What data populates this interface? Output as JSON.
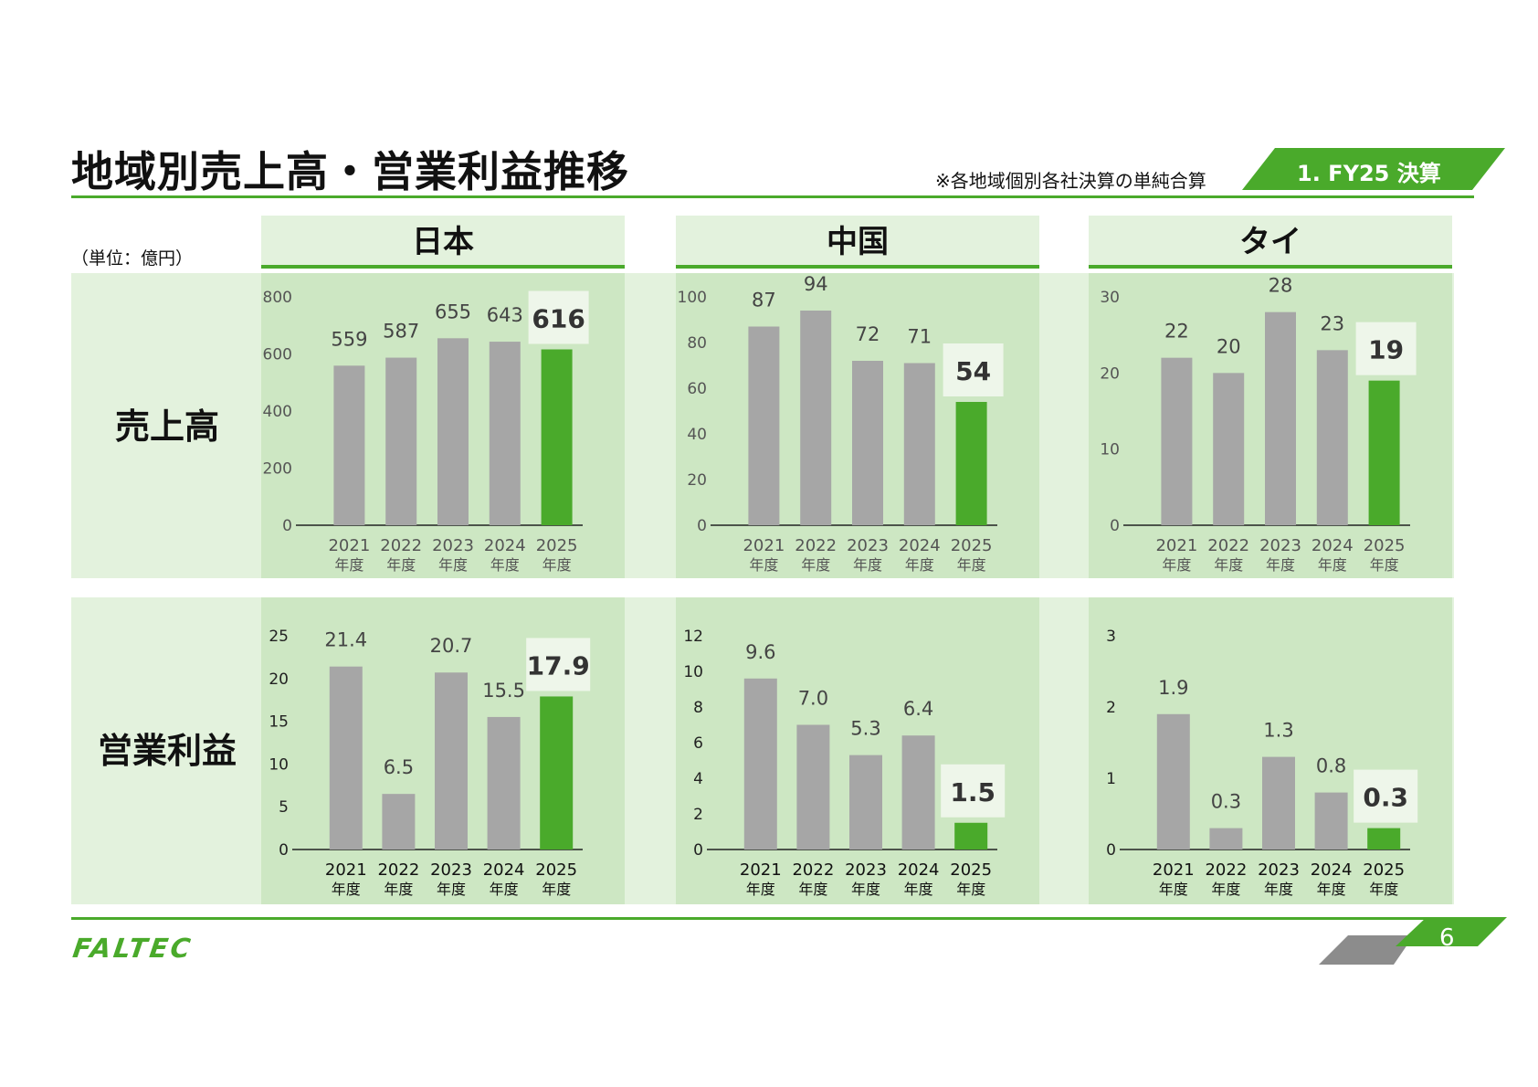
{
  "title": "地域別売上高・営業利益推移",
  "note": "※各地域個別各社決算の単純合算",
  "section": "1. FY25 決算",
  "unit": "（単位：億円）",
  "regions": [
    "日本",
    "中国",
    "タイ"
  ],
  "rows": [
    "売上高",
    "営業利益"
  ],
  "page": "6",
  "logo": "FALTEC",
  "colors": {
    "accent": "#4aaa2b",
    "bar": "#a6a6a6",
    "panel": "#cde7c3",
    "band": "#e3f2dd"
  },
  "chart_data": [
    {
      "type": "bar",
      "region": "日本",
      "metric": "売上高",
      "categories": [
        "2021\n年度",
        "2022\n年度",
        "2023\n年度",
        "2024\n年度",
        "2025\n年度"
      ],
      "values": [
        559,
        587,
        655,
        643,
        616
      ],
      "ylim": [
        0,
        800
      ],
      "yticks": [
        0,
        200,
        400,
        600,
        800
      ],
      "labels": [
        "559",
        "587",
        "655",
        "643",
        "616"
      ],
      "highlight_last": true
    },
    {
      "type": "bar",
      "region": "中国",
      "metric": "売上高",
      "categories": [
        "2021\n年度",
        "2022\n年度",
        "2023\n年度",
        "2024\n年度",
        "2025\n年度"
      ],
      "values": [
        87,
        94,
        72,
        71,
        54
      ],
      "ylim": [
        0,
        100
      ],
      "yticks": [
        0,
        20,
        40,
        60,
        80,
        100
      ],
      "labels": [
        "87",
        "94",
        "72",
        "71",
        "54"
      ],
      "highlight_last": true
    },
    {
      "type": "bar",
      "region": "タイ",
      "metric": "売上高",
      "categories": [
        "2021\n年度",
        "2022\n年度",
        "2023\n年度",
        "2024\n年度",
        "2025\n年度"
      ],
      "values": [
        22,
        20,
        28,
        23,
        19
      ],
      "ylim": [
        0,
        30
      ],
      "yticks": [
        0,
        10,
        20,
        30
      ],
      "labels": [
        "22",
        "20",
        "28",
        "23",
        "19"
      ],
      "highlight_last": true
    },
    {
      "type": "bar",
      "region": "日本",
      "metric": "営業利益",
      "categories": [
        "2021\n年度",
        "2022\n年度",
        "2023\n年度",
        "2024\n年度",
        "2025\n年度"
      ],
      "values": [
        21.4,
        6.5,
        20.7,
        15.5,
        17.9
      ],
      "ylim": [
        0,
        25
      ],
      "yticks": [
        0,
        5,
        10,
        15,
        20,
        25
      ],
      "labels": [
        "21.4",
        "6.5",
        "20.7",
        "15.5",
        "17.9"
      ],
      "highlight_last": true
    },
    {
      "type": "bar",
      "region": "中国",
      "metric": "営業利益",
      "categories": [
        "2021\n年度",
        "2022\n年度",
        "2023\n年度",
        "2024\n年度",
        "2025\n年度"
      ],
      "values": [
        9.6,
        7.0,
        5.3,
        6.4,
        1.5
      ],
      "ylim": [
        0,
        12
      ],
      "yticks": [
        0,
        2,
        4,
        6,
        8,
        10,
        12
      ],
      "labels": [
        "9.6",
        "7.0",
        "5.3",
        "6.4",
        "1.5"
      ],
      "highlight_last": true
    },
    {
      "type": "bar",
      "region": "タイ",
      "metric": "営業利益",
      "categories": [
        "2021\n年度",
        "2022\n年度",
        "2023\n年度",
        "2024\n年度",
        "2025\n年度"
      ],
      "values": [
        1.9,
        0.3,
        1.3,
        0.8,
        0.3
      ],
      "ylim": [
        0,
        3
      ],
      "yticks": [
        0,
        1,
        2,
        3
      ],
      "labels": [
        "1.9",
        "0.3",
        "1.3",
        "0.8",
        "0.3"
      ],
      "highlight_last": true
    }
  ]
}
